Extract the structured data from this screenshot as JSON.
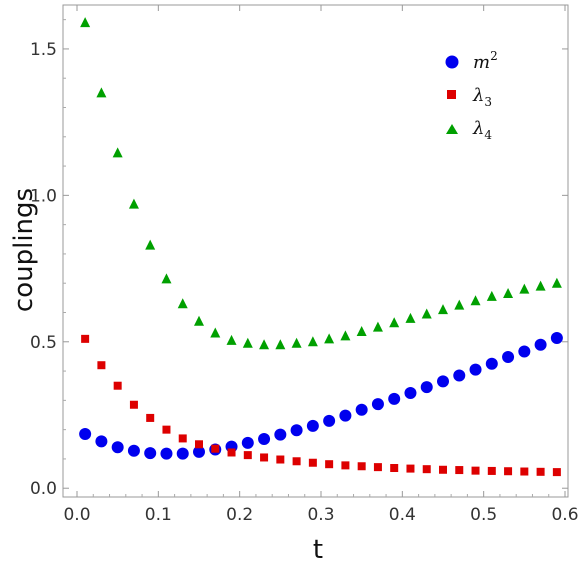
{
  "chart_data": {
    "type": "scatter",
    "xlabel": "t",
    "ylabel": "couplings",
    "xlim": [
      0,
      0.6
    ],
    "ylim": [
      -0.03,
      1.65
    ],
    "x_ticks": [
      {
        "value": 0.0,
        "label": "0.0"
      },
      {
        "value": 0.1,
        "label": "0.1"
      },
      {
        "value": 0.2,
        "label": "0.2"
      },
      {
        "value": 0.3,
        "label": "0.3"
      },
      {
        "value": 0.4,
        "label": "0.4"
      },
      {
        "value": 0.5,
        "label": "0.5"
      },
      {
        "value": 0.6,
        "label": "0.6"
      }
    ],
    "y_ticks": [
      {
        "value": 0.0,
        "label": "0.0"
      },
      {
        "value": 0.5,
        "label": "0.5"
      },
      {
        "value": 1.0,
        "label": "1.0"
      },
      {
        "value": 1.5,
        "label": "1.5"
      }
    ],
    "grid": false,
    "legend_position": "top-right",
    "x": [
      0.01,
      0.03,
      0.05,
      0.07,
      0.09,
      0.11,
      0.13,
      0.15,
      0.17,
      0.19,
      0.21,
      0.23,
      0.25,
      0.27,
      0.29,
      0.31,
      0.33,
      0.35,
      0.37,
      0.39,
      0.41,
      0.43,
      0.45,
      0.47,
      0.49,
      0.51,
      0.53,
      0.55,
      0.57,
      0.59
    ],
    "series": [
      {
        "name": "m",
        "superscript": "2",
        "marker": "circle",
        "color": "#0000ee",
        "values": [
          0.185,
          0.16,
          0.14,
          0.128,
          0.12,
          0.118,
          0.118,
          0.124,
          0.132,
          0.142,
          0.155,
          0.168,
          0.183,
          0.198,
          0.213,
          0.23,
          0.248,
          0.268,
          0.287,
          0.305,
          0.325,
          0.345,
          0.365,
          0.385,
          0.405,
          0.425,
          0.448,
          0.467,
          0.49,
          0.513
        ]
      },
      {
        "name": "λ",
        "subscript": "3",
        "marker": "square",
        "color": "#dd0000",
        "values": [
          0.51,
          0.42,
          0.35,
          0.285,
          0.24,
          0.2,
          0.17,
          0.15,
          0.135,
          0.122,
          0.113,
          0.105,
          0.098,
          0.092,
          0.087,
          0.082,
          0.078,
          0.075,
          0.072,
          0.069,
          0.067,
          0.065,
          0.063,
          0.062,
          0.06,
          0.059,
          0.058,
          0.057,
          0.056,
          0.055
        ]
      },
      {
        "name": "λ",
        "subscript": "4",
        "marker": "triangle",
        "color": "#00a000",
        "values": [
          1.59,
          1.35,
          1.145,
          0.97,
          0.83,
          0.715,
          0.63,
          0.57,
          0.53,
          0.505,
          0.495,
          0.49,
          0.49,
          0.495,
          0.5,
          0.51,
          0.52,
          0.535,
          0.55,
          0.565,
          0.58,
          0.595,
          0.61,
          0.625,
          0.64,
          0.655,
          0.665,
          0.68,
          0.69,
          0.7
        ]
      }
    ]
  }
}
